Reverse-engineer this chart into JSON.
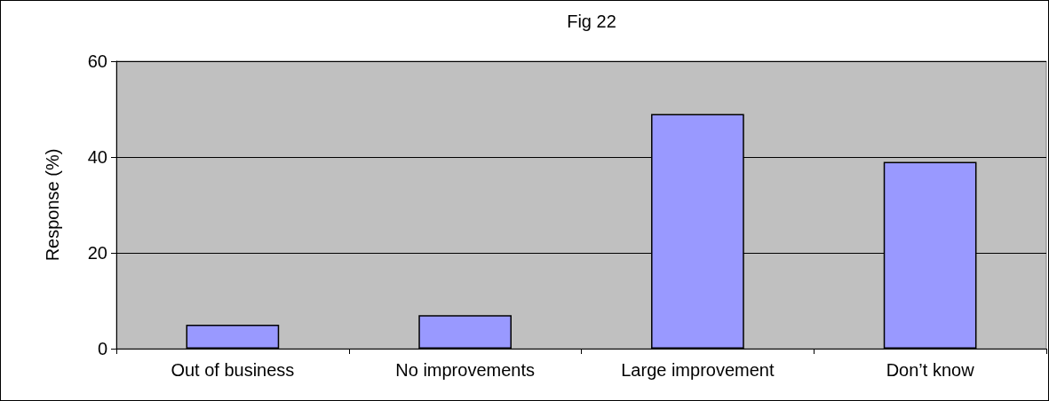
{
  "chart_data": {
    "type": "bar",
    "title": "Fig 22",
    "ylabel": "Response (%)",
    "categories": [
      "Out of business",
      "No improvements",
      "Large improvement",
      "Don’t know"
    ],
    "values": [
      5,
      7,
      49,
      39
    ],
    "color": "#9999ff",
    "ylim": [
      0,
      60
    ],
    "yticks": [
      0,
      20,
      40,
      60
    ],
    "grid": "y"
  }
}
